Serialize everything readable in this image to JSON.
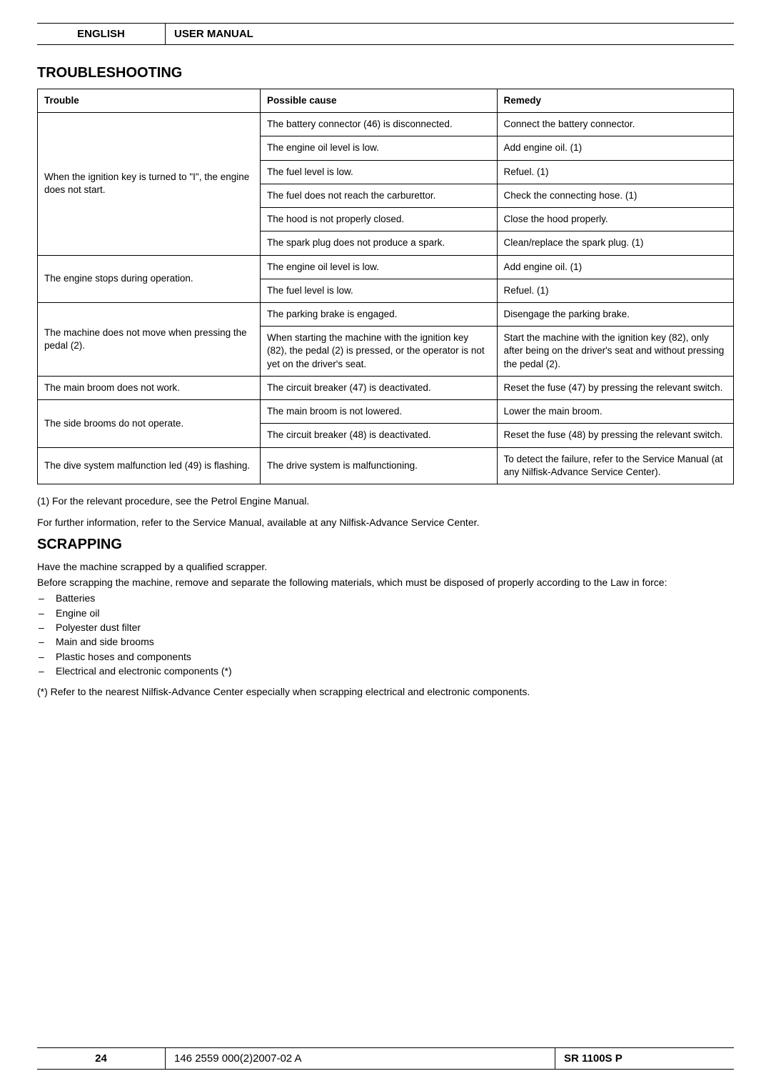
{
  "header": {
    "lang": "ENGLISH",
    "doc": "USER MANUAL"
  },
  "section1_title": "TROUBLESHOOTING",
  "table": {
    "headers": {
      "trouble": "Trouble",
      "cause": "Possible cause",
      "remedy": "Remedy"
    },
    "groups": [
      {
        "trouble": "When the ignition key is turned to \"I\", the engine does not start.",
        "rows": [
          {
            "cause": "The battery connector (46) is disconnected.",
            "remedy": "Connect the battery connector."
          },
          {
            "cause": "The engine oil level is low.",
            "remedy": "Add engine oil. (1)"
          },
          {
            "cause": "The fuel level is low.",
            "remedy": "Refuel. (1)"
          },
          {
            "cause": "The fuel does not reach the carburettor.",
            "remedy": "Check the connecting hose. (1)"
          },
          {
            "cause": "The hood is not properly closed.",
            "remedy": "Close the hood properly."
          },
          {
            "cause": "The spark plug does not produce a spark.",
            "remedy": "Clean/replace the spark plug. (1)"
          }
        ]
      },
      {
        "trouble": "The engine stops during operation.",
        "rows": [
          {
            "cause": "The engine oil level is low.",
            "remedy": "Add engine oil. (1)"
          },
          {
            "cause": "The fuel level is low.",
            "remedy": "Refuel. (1)"
          }
        ]
      },
      {
        "trouble": "The machine does not move when pressing the pedal (2).",
        "rows": [
          {
            "cause": "The parking brake is engaged.",
            "remedy": "Disengage the parking brake."
          },
          {
            "cause": "When starting the machine with the ignition key (82), the pedal (2) is pressed, or the operator is not yet on the driver's seat.",
            "remedy": "Start the machine with the ignition key (82), only after being on the driver's seat and without pressing the pedal (2)."
          }
        ]
      },
      {
        "trouble": "The main broom does not work.",
        "rows": [
          {
            "cause": "The circuit breaker (47) is deactivated.",
            "remedy": "Reset the fuse (47) by pressing the relevant switch."
          }
        ]
      },
      {
        "trouble": "The side brooms do not operate.",
        "rows": [
          {
            "cause": "The main broom is not lowered.",
            "remedy": "Lower the main broom."
          },
          {
            "cause": "The circuit breaker (48) is deactivated.",
            "remedy": "Reset the fuse (48) by pressing the relevant switch."
          }
        ]
      },
      {
        "trouble": "The dive system malfunction led (49) is flashing.",
        "rows": [
          {
            "cause": "The drive system is malfunctioning.",
            "remedy": "To detect the failure, refer to the Service Manual (at any Nilfisk-Advance Service Center)."
          }
        ]
      }
    ]
  },
  "note1": "(1)   For the relevant procedure, see the Petrol Engine Manual.",
  "note2": "For further information, refer to the Service Manual, available at any Nilfisk-Advance Service Center.",
  "section2_title": "SCRAPPING",
  "scrap_p1": "Have the machine scrapped by a qualified scrapper.",
  "scrap_p2": "Before scrapping the machine, remove and separate the following materials, which must be disposed of properly according to the Law in force:",
  "scrap_list": [
    "Batteries",
    "Engine oil",
    "Polyester dust filter",
    "Main and side brooms",
    "Plastic hoses and components",
    "Electrical and electronic components (*)"
  ],
  "scrap_note": "(*)   Refer to the nearest Nilfisk-Advance Center especially when scrapping electrical and electronic components.",
  "footer": {
    "page": "24",
    "code": "146 2559 000(2)2007-02 A",
    "model": "SR 1100S P"
  }
}
